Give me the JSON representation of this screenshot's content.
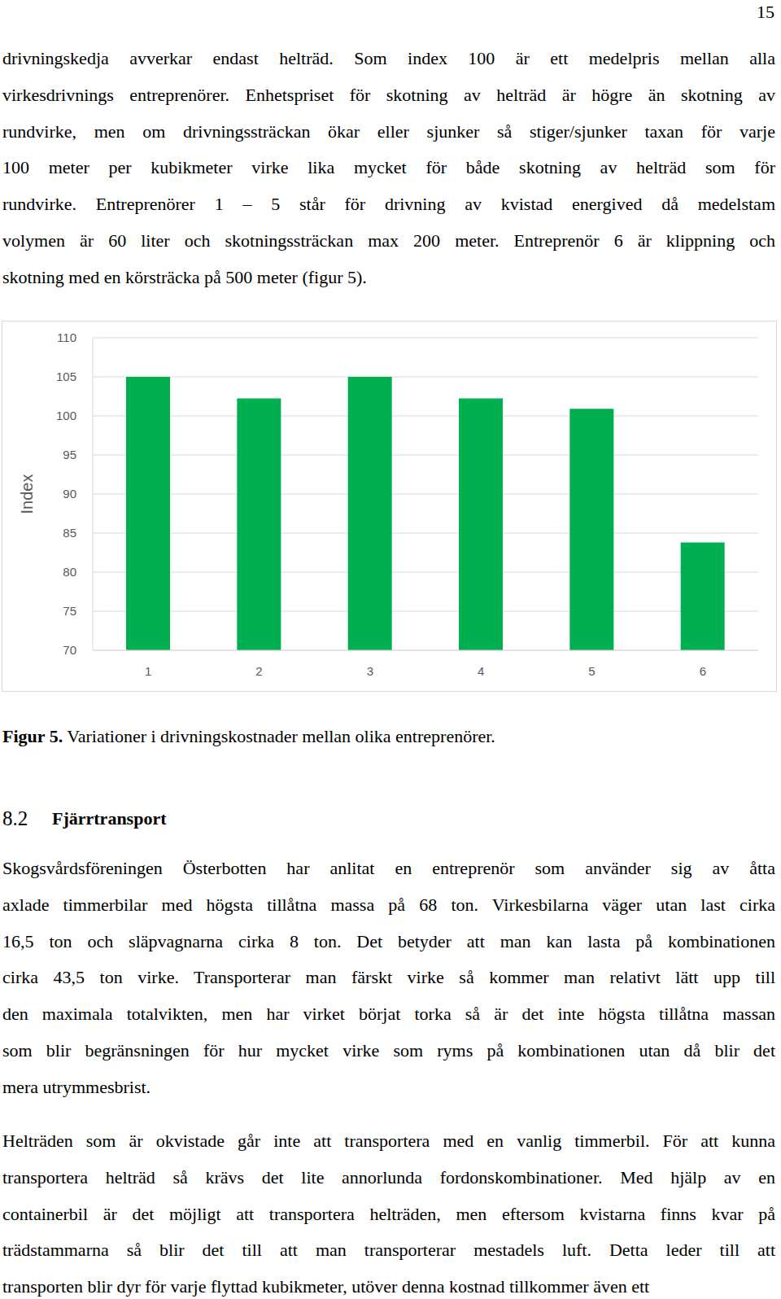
{
  "page_number": "15",
  "paragraphs_before": [
    {
      "lines": [
        "drivningskedja avverkar endast helträd. Som index 100 är ett medelpris mellan alla",
        "virkesdrivnings entreprenörer. Enhetspriset för skotning av helträd är högre än skotning av",
        "rundvirke, men om drivningssträckan ökar eller sjunker så stiger/sjunker taxan för varje",
        "100 meter per kubikmeter virke lika mycket för både skotning av helträd som för",
        "rundvirke. Entreprenörer 1 – 5 står för drivning av kvistad energived då medelstam",
        "volymen är 60 liter och skotningssträckan max 200 meter. Entreprenör 6 är klippning och",
        "skotning med en körsträcka på 500 meter (figur 5)."
      ]
    }
  ],
  "chart_data": {
    "type": "bar",
    "categories": [
      "1",
      "2",
      "3",
      "4",
      "5",
      "6"
    ],
    "values": [
      105,
      102.25,
      105,
      102.25,
      100.9,
      83.8
    ],
    "color": "#00b050",
    "ylim": [
      70,
      110
    ],
    "yticks": [
      70,
      75,
      80,
      85,
      90,
      95,
      100,
      105,
      110
    ],
    "y_label": "Index",
    "grid": true
  },
  "figure": {
    "caption_label": "Figur 5.",
    "caption_text": "Variationer i drivningskostnader mellan olika entreprenörer."
  },
  "section": {
    "number": "8.2",
    "title": "Fjärrtransport"
  },
  "paragraphs_after": [
    {
      "lines": [
        "Skogsvårdsföreningen Österbotten har anlitat en entreprenör som använder sig av åtta",
        "axlade timmerbilar med högsta tillåtna massa på 68 ton. Virkesbilarna väger utan last cirka",
        "16,5 ton och släpvagnarna cirka 8 ton. Det betyder att man kan lasta på kombinationen",
        "cirka 43,5 ton virke. Transporterar man färskt virke så kommer man relativt lätt upp till",
        "den maximala totalvikten, men har virket börjat torka så är det inte högsta tillåtna massan",
        "som blir begränsningen för hur mycket virke som ryms på kombinationen utan då blir det",
        "mera utrymmesbrist."
      ]
    },
    {
      "lines": [
        "Helträden som är okvistade går inte att transportera med en vanlig timmerbil. För att kunna",
        "transportera helträd så krävs det lite annorlunda fordonskombinationer. Med hjälp av en",
        "containerbil är det möjligt att transportera helträden, men eftersom kvistarna finns kvar på",
        "trädstammarna så blir det till att man transporterar mestadels luft. Detta leder till att",
        "transporten blir dyr för varje flyttad kubikmeter, utöver denna kostnad tillkommer även ett"
      ]
    }
  ]
}
